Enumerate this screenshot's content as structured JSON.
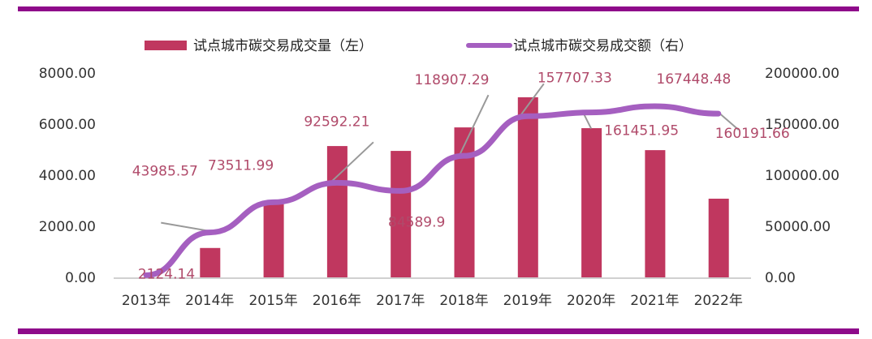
{
  "chart_data": {
    "type": "bar+line",
    "categories": [
      "2013年",
      "2014年",
      "2015年",
      "2016年",
      "2017年",
      "2018年",
      "2019年",
      "2020年",
      "2021年",
      "2022年"
    ],
    "series": [
      {
        "name": "试点城市碳交易成交量（左）",
        "type": "bar",
        "axis": "left",
        "color": "#c0375f",
        "values": [
          0,
          1150,
          2860,
          5140,
          4950,
          5870,
          7050,
          5840,
          4980,
          3080
        ]
      },
      {
        "name": "试点城市碳交易成交额（右）",
        "type": "line",
        "axis": "right",
        "color": "#a55fc0",
        "values": [
          2124.14,
          43985.57,
          73511.99,
          92592.21,
          84589.9,
          118907.29,
          157707.33,
          161451.95,
          167448.48,
          160191.66
        ],
        "labels": [
          "2124.14",
          "43985.57",
          "73511.99",
          "92592.21",
          "84589.9",
          "118907.29",
          "157707.33",
          "161451.95",
          "167448.48",
          "160191.66"
        ]
      }
    ],
    "left_axis": {
      "range": [
        0,
        8000
      ],
      "ticks": [
        "0.00",
        "2000.00",
        "4000.00",
        "6000.00",
        "8000.00"
      ]
    },
    "right_axis": {
      "range": [
        0,
        200000
      ],
      "ticks": [
        "0.00",
        "50000.00",
        "100000.00",
        "150000.00",
        "200000.00"
      ]
    },
    "grid": false,
    "legend": "top"
  },
  "colors": {
    "band": "#8e0a8a",
    "label": "#b04a6a"
  }
}
